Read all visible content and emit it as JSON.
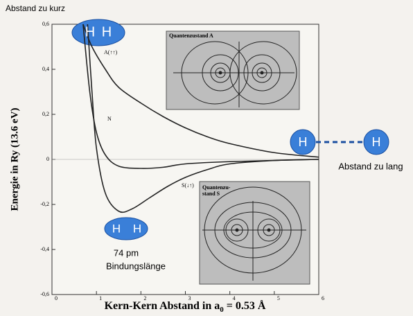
{
  "chart_data": {
    "type": "line",
    "xlim": [
      0,
      6
    ],
    "xticks": [
      0,
      1,
      2,
      3,
      4,
      5,
      6
    ],
    "ylim": [
      -0.6,
      0.6
    ],
    "yticks": [
      {
        "value": -0.6,
        "label": "-0,6"
      },
      {
        "value": -0.4,
        "label": "-0,4"
      },
      {
        "value": -0.2,
        "label": "-0,2"
      },
      0,
      {
        "value": 0.2,
        "label": "0,2"
      },
      {
        "value": 0.4,
        "label": "0,4"
      },
      {
        "value": 0.6,
        "label": "0,6"
      }
    ],
    "y_label": "Energie in Ry (13.6 eV)",
    "x_label": {
      "text": "Kern-Kern Abstand in a",
      "subscript": "0",
      "suffix": "= 0.53 Å"
    },
    "series": [
      {
        "name": "A(↑↑)",
        "color": "#222",
        "x": [
          0.7,
          0.9,
          1.2,
          1.5,
          2,
          2.5,
          3,
          3.5,
          4,
          5,
          6
        ],
        "values": [
          0.6,
          0.5,
          0.4,
          0.32,
          0.25,
          0.19,
          0.14,
          0.1,
          0.07,
          0.03,
          0.01
        ]
      },
      {
        "name": "N",
        "color": "#222",
        "x": [
          0.7,
          0.85,
          1.0,
          1.2,
          1.5,
          2,
          2.5,
          3,
          4,
          6
        ],
        "values": [
          0.6,
          0.3,
          0.12,
          0.02,
          -0.03,
          -0.04,
          -0.035,
          -0.02,
          -0.01,
          0
        ]
      },
      {
        "name": "S(↓↑)",
        "color": "#222",
        "x": [
          0.8,
          0.9,
          1.0,
          1.2,
          1.5,
          1.8,
          2.2,
          2.6,
          3,
          3.5,
          4,
          5,
          6
        ],
        "values": [
          0.6,
          0.3,
          0.05,
          -0.15,
          -0.23,
          -0.22,
          -0.17,
          -0.12,
          -0.08,
          -0.045,
          -0.02,
          -0.005,
          0
        ]
      }
    ],
    "annotations": [
      "Abstand zu kurz",
      "H",
      "H",
      "Quantenzustand A",
      "Quantenzu-",
      "stand S",
      "H",
      "H",
      "Abstand zu lang",
      "H",
      "H",
      "74 pm",
      "Bindungslänge"
    ]
  }
}
